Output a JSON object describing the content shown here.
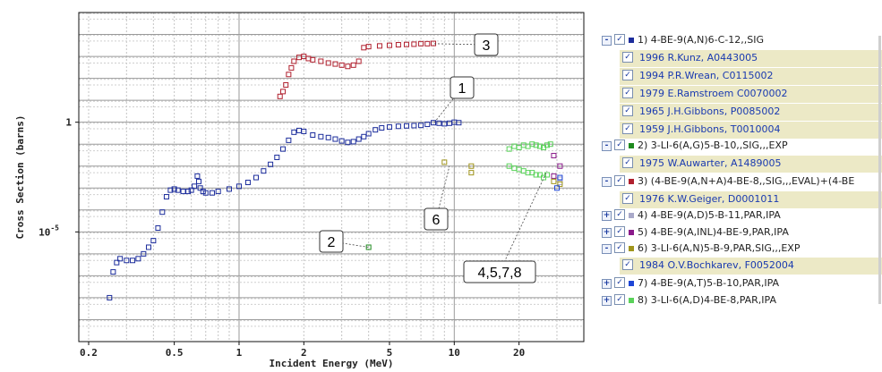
{
  "chart_data": {
    "type": "scatter",
    "xlabel": "Incident Energy (MeV)",
    "ylabel": "Cross Section (barns)",
    "x_scale": "log",
    "y_scale": "log",
    "xlim": [
      0.18,
      40
    ],
    "ylim": [
      1e-10,
      100000
    ],
    "x_ticks": [
      {
        "v": 0.2,
        "label": "0.2"
      },
      {
        "v": 0.5,
        "label": "0.5"
      },
      {
        "v": 1,
        "label": "1"
      },
      {
        "v": 2,
        "label": "2"
      },
      {
        "v": 5,
        "label": "5"
      },
      {
        "v": 10,
        "label": "10"
      },
      {
        "v": 20,
        "label": "20"
      }
    ],
    "y_ticks": [
      {
        "v": 1,
        "label": "1"
      },
      {
        "v": 1e-05,
        "label": "10^-5"
      }
    ],
    "grid": true,
    "series": [
      {
        "name": "1) 4-BE-9(A,N)6-C-12,,SIG",
        "color": "#1c2d9c",
        "points": [
          [
            0.25,
            1e-08
          ],
          [
            0.26,
            1.5e-07
          ],
          [
            0.27,
            4e-07
          ],
          [
            0.28,
            6e-07
          ],
          [
            0.3,
            5e-07
          ],
          [
            0.32,
            5e-07
          ],
          [
            0.34,
            6e-07
          ],
          [
            0.36,
            1e-06
          ],
          [
            0.38,
            2e-06
          ],
          [
            0.4,
            4e-06
          ],
          [
            0.42,
            1.5e-05
          ],
          [
            0.44,
            8e-05
          ],
          [
            0.46,
            0.0004
          ],
          [
            0.48,
            0.0008
          ],
          [
            0.5,
            0.0009
          ],
          [
            0.52,
            0.0008
          ],
          [
            0.55,
            0.0007
          ],
          [
            0.58,
            0.0007
          ],
          [
            0.6,
            0.0008
          ],
          [
            0.62,
            0.0012
          ],
          [
            0.64,
            0.0035
          ],
          [
            0.65,
            0.002
          ],
          [
            0.66,
            0.001
          ],
          [
            0.68,
            0.0007
          ],
          [
            0.7,
            0.0006
          ],
          [
            0.75,
            0.0006
          ],
          [
            0.8,
            0.0007
          ],
          [
            0.9,
            0.0009
          ],
          [
            1,
            0.0012
          ],
          [
            1.1,
            0.0018
          ],
          [
            1.2,
            0.003
          ],
          [
            1.3,
            0.006
          ],
          [
            1.4,
            0.012
          ],
          [
            1.5,
            0.025
          ],
          [
            1.6,
            0.06
          ],
          [
            1.7,
            0.15
          ],
          [
            1.8,
            0.35
          ],
          [
            1.9,
            0.42
          ],
          [
            2,
            0.38
          ],
          [
            2.2,
            0.26
          ],
          [
            2.4,
            0.22
          ],
          [
            2.6,
            0.2
          ],
          [
            2.8,
            0.17
          ],
          [
            3,
            0.14
          ],
          [
            3.2,
            0.12
          ],
          [
            3.4,
            0.13
          ],
          [
            3.6,
            0.17
          ],
          [
            3.8,
            0.22
          ],
          [
            4,
            0.3
          ],
          [
            4.3,
            0.45
          ],
          [
            4.6,
            0.55
          ],
          [
            5,
            0.6
          ],
          [
            5.5,
            0.65
          ],
          [
            6,
            0.68
          ],
          [
            6.5,
            0.7
          ],
          [
            7,
            0.72
          ],
          [
            7.5,
            0.8
          ],
          [
            8,
            0.95
          ],
          [
            8.5,
            0.9
          ],
          [
            9,
            0.85
          ],
          [
            9.5,
            0.9
          ],
          [
            10,
            1
          ],
          [
            10.5,
            0.95
          ]
        ]
      },
      {
        "name": "2) 3-LI-6(A,G)5-B-10,,SIG,,,EXP",
        "color": "#1e8a1e",
        "points": [
          [
            4,
            2e-06
          ]
        ]
      },
      {
        "name": "3) (4-BE-9(A,N+A)4-BE-8,,SIG,,,EVAL)+(4-BE",
        "color": "#b0202e",
        "points": [
          [
            1.55,
            15
          ],
          [
            1.6,
            25
          ],
          [
            1.65,
            50
          ],
          [
            1.7,
            150
          ],
          [
            1.75,
            300
          ],
          [
            1.8,
            600
          ],
          [
            1.9,
            900
          ],
          [
            2,
            1000
          ],
          [
            2.1,
            800
          ],
          [
            2.2,
            700
          ],
          [
            2.4,
            600
          ],
          [
            2.6,
            500
          ],
          [
            2.8,
            450
          ],
          [
            3,
            400
          ],
          [
            3.2,
            350
          ],
          [
            3.4,
            400
          ],
          [
            3.6,
            600
          ],
          [
            3.8,
            2500
          ],
          [
            4,
            2800
          ],
          [
            4.5,
            3000
          ],
          [
            5,
            3200
          ],
          [
            5.5,
            3400
          ],
          [
            6,
            3500
          ],
          [
            6.5,
            3600
          ],
          [
            7,
            3800
          ],
          [
            7.5,
            3800
          ],
          [
            8,
            3900
          ]
        ]
      },
      {
        "name": "4) 4-BE-9(A,D)5-B-11,PAR,IPA",
        "color": "#a9a9c9",
        "points": [
          [
            31,
            0.0018
          ],
          [
            31,
            0.0025
          ]
        ]
      },
      {
        "name": "5) 4-BE-9(A,INL)4-BE-9,PAR,IPA",
        "color": "#8a1a8a",
        "points": [
          [
            29,
            0.03
          ],
          [
            29,
            0.0035
          ],
          [
            31,
            0.01
          ]
        ]
      },
      {
        "name": "6) 3-LI-6(A,N)5-B-9,PAR,SIG,,,EXP",
        "color": "#a0951c",
        "points": [
          [
            9,
            0.015
          ],
          [
            12,
            0.01
          ],
          [
            12,
            0.005
          ],
          [
            29,
            0.002
          ],
          [
            31,
            0.0015
          ]
        ]
      },
      {
        "name": "7) 4-BE-9(A,T)5-B-10,PAR,IPA",
        "color": "#1e46d6",
        "points": [
          [
            31,
            0.003
          ],
          [
            30,
            0.001
          ]
        ]
      },
      {
        "name": "8) 3-LI-6(A,D)4-BE-8,PAR,IPA",
        "color": "#5ad25a",
        "points": [
          [
            18,
            0.06
          ],
          [
            19,
            0.08
          ],
          [
            20,
            0.07
          ],
          [
            21,
            0.09
          ],
          [
            22,
            0.08
          ],
          [
            23,
            0.1
          ],
          [
            24,
            0.09
          ],
          [
            25,
            0.08
          ],
          [
            26,
            0.07
          ],
          [
            27,
            0.09
          ],
          [
            28,
            0.1
          ],
          [
            18,
            0.01
          ],
          [
            19,
            0.008
          ],
          [
            20,
            0.007
          ],
          [
            21,
            0.006
          ],
          [
            22,
            0.005
          ],
          [
            23,
            0.005
          ],
          [
            24,
            0.004
          ],
          [
            25,
            0.004
          ],
          [
            26,
            0.003
          ],
          [
            27,
            0.004
          ]
        ]
      }
    ],
    "callouts": [
      {
        "label": "3",
        "target_x": 8,
        "target_y": 3800
      },
      {
        "label": "1",
        "target_x": 8.1,
        "target_y": 1
      },
      {
        "label": "6",
        "target_x": 9.5,
        "target_y": 0.01
      },
      {
        "label": "2",
        "target_x": 4,
        "target_y": 2e-06
      },
      {
        "label": "4,5,7,8",
        "target_x": 27,
        "target_y": 0.006
      }
    ]
  },
  "legend": {
    "rows": [
      {
        "kind": "reaction",
        "pm": "-",
        "checked": true,
        "swatch": "#1c2d9c",
        "text": "1) 4-BE-9(A,N)6-C-12,,SIG"
      },
      {
        "kind": "dataset",
        "checked": true,
        "text": "1996 R.Kunz, A0443005"
      },
      {
        "kind": "dataset",
        "checked": true,
        "text": "1994 P.R.Wrean, C0115002"
      },
      {
        "kind": "dataset",
        "checked": true,
        "text": "1979 E.Ramstroem C0070002"
      },
      {
        "kind": "dataset",
        "checked": true,
        "text": "1965 J.H.Gibbons, P0085002"
      },
      {
        "kind": "dataset",
        "checked": true,
        "text": "1959 J.H.Gibbons, T0010004"
      },
      {
        "kind": "reaction",
        "pm": "-",
        "checked": true,
        "swatch": "#1e8a1e",
        "text": "2) 3-LI-6(A,G)5-B-10,,SIG,,,EXP"
      },
      {
        "kind": "dataset",
        "checked": true,
        "text": "1975 W.Auwarter, A1489005"
      },
      {
        "kind": "reaction",
        "pm": "-",
        "checked": true,
        "swatch": "#b0202e",
        "text": "3) (4-BE-9(A,N+A)4-BE-8,,SIG,,,EVAL)+(4-BE"
      },
      {
        "kind": "dataset",
        "checked": true,
        "text": "1976 K.W.Geiger, D0001011"
      },
      {
        "kind": "reaction",
        "pm": "+",
        "checked": true,
        "swatch": "#a9a9c9",
        "text": "4) 4-BE-9(A,D)5-B-11,PAR,IPA"
      },
      {
        "kind": "reaction",
        "pm": "+",
        "checked": true,
        "swatch": "#8a1a8a",
        "text": "5) 4-BE-9(A,INL)4-BE-9,PAR,IPA"
      },
      {
        "kind": "reaction",
        "pm": "-",
        "checked": true,
        "swatch": "#a0951c",
        "text": "6) 3-LI-6(A,N)5-B-9,PAR,SIG,,,EXP"
      },
      {
        "kind": "dataset",
        "checked": true,
        "text": "1984 O.V.Bochkarev, F0052004"
      },
      {
        "kind": "reaction",
        "pm": "+",
        "checked": true,
        "swatch": "#1e46d6",
        "text": "7) 4-BE-9(A,T)5-B-10,PAR,IPA"
      },
      {
        "kind": "reaction",
        "pm": "+",
        "checked": true,
        "swatch": "#5ad25a",
        "text": "8) 3-LI-6(A,D)4-BE-8,PAR,IPA"
      }
    ]
  }
}
